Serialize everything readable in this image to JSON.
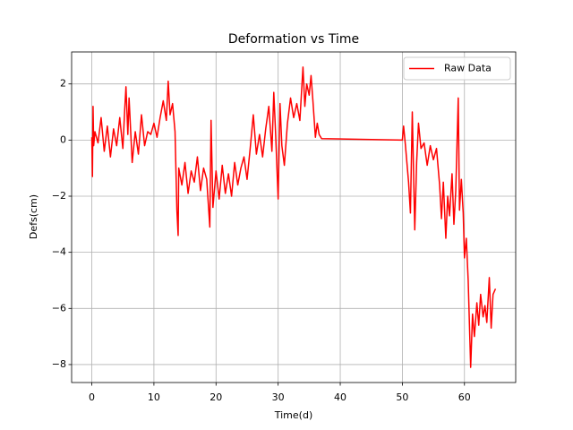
{
  "chart_data": {
    "type": "line",
    "title": "Deformation vs Time",
    "x_label": "Time(d)",
    "y_label": "Defs(cm)",
    "x": [
      0,
      0.1,
      0.2,
      0.3,
      0.5,
      1,
      1.5,
      2,
      2.5,
      3,
      3.5,
      4,
      4.5,
      5,
      5.3,
      5.5,
      5.8,
      6,
      6.5,
      7,
      7.5,
      8,
      8.5,
      9,
      9.5,
      10,
      10.5,
      11,
      11.5,
      12,
      12.3,
      12.6,
      13,
      13.4,
      13.7,
      13.9,
      14,
      14.5,
      15,
      15.5,
      16,
      16.5,
      17,
      17.5,
      18,
      18.5,
      19,
      19.2,
      19.5,
      20,
      20.5,
      21,
      21.5,
      22,
      22.5,
      23,
      23.5,
      24,
      24.5,
      25,
      25.5,
      26,
      26.5,
      27,
      27.5,
      28,
      28.5,
      29,
      29.3,
      29.6,
      30,
      30.3,
      30.6,
      31,
      31.5,
      32,
      32.5,
      33,
      33.5,
      34,
      34.3,
      34.6,
      35,
      35.3,
      35.6,
      36,
      36.3,
      36.6,
      37,
      50,
      50.2,
      50.5,
      51,
      51.3,
      51.6,
      52,
      52.3,
      52.6,
      53,
      53.5,
      54,
      54.5,
      55,
      55.5,
      56,
      56.3,
      56.6,
      57,
      57.3,
      57.6,
      58,
      58.3,
      58.6,
      59,
      59.2,
      59.5,
      59.8,
      60,
      60.3,
      60.6,
      61,
      61.3,
      61.6,
      62,
      62.3,
      62.6,
      63,
      63.3,
      63.6,
      64,
      64.3,
      64.6,
      65
    ],
    "series": [
      {
        "name": "Raw Data",
        "color": "#ff0000",
        "values": [
          0.1,
          -1.3,
          1.2,
          -0.2,
          0.3,
          -0.1,
          0.8,
          -0.4,
          0.5,
          -0.6,
          0.4,
          -0.2,
          0.8,
          -0.3,
          1.1,
          1.9,
          0.2,
          1.5,
          -0.8,
          0.3,
          -0.5,
          0.9,
          -0.2,
          0.3,
          0.2,
          0.6,
          0.1,
          0.8,
          1.4,
          0.7,
          2.1,
          0.9,
          1.3,
          0.3,
          -2.5,
          -3.4,
          -1.0,
          -1.6,
          -0.8,
          -1.9,
          -1.1,
          -1.5,
          -0.6,
          -1.8,
          -1.0,
          -1.4,
          -3.1,
          0.7,
          -2.4,
          -1.1,
          -2.1,
          -0.9,
          -1.9,
          -1.2,
          -2.0,
          -0.8,
          -1.6,
          -1.0,
          -0.6,
          -1.4,
          -0.3,
          0.9,
          -0.5,
          0.2,
          -0.6,
          0.4,
          1.2,
          -0.4,
          1.7,
          0.2,
          -2.1,
          1.3,
          -0.2,
          -0.9,
          0.6,
          1.5,
          0.8,
          1.3,
          0.7,
          2.6,
          1.2,
          2.0,
          1.6,
          2.3,
          1.4,
          0.1,
          0.6,
          0.2,
          0.05,
          0.0,
          0.5,
          -0.2,
          -1.5,
          -2.6,
          1.0,
          -3.2,
          -0.8,
          0.6,
          -0.3,
          -0.1,
          -0.9,
          -0.2,
          -0.7,
          -0.3,
          -1.6,
          -2.8,
          -1.5,
          -3.5,
          -2.0,
          -2.7,
          -1.2,
          -3.0,
          -1.8,
          1.5,
          -2.5,
          -1.4,
          -2.6,
          -4.2,
          -3.5,
          -5.0,
          -8.1,
          -6.2,
          -7.0,
          -5.8,
          -6.6,
          -5.5,
          -6.3,
          -5.9,
          -6.5,
          -4.9,
          -6.7,
          -5.5,
          -5.3
        ]
      }
    ],
    "xlim": [
      -3.25,
      68.25
    ],
    "xticks": [
      0,
      10,
      20,
      30,
      40,
      50,
      60
    ],
    "ylim": [
      -8.64,
      3.14
    ],
    "yticks": [
      {
        "value": -8,
        "label": "−8"
      },
      {
        "value": -6,
        "label": "−6"
      },
      {
        "value": -4,
        "label": "−4"
      },
      {
        "value": -2,
        "label": "−2"
      },
      0,
      2
    ],
    "grid": true,
    "legend": "upper right"
  }
}
